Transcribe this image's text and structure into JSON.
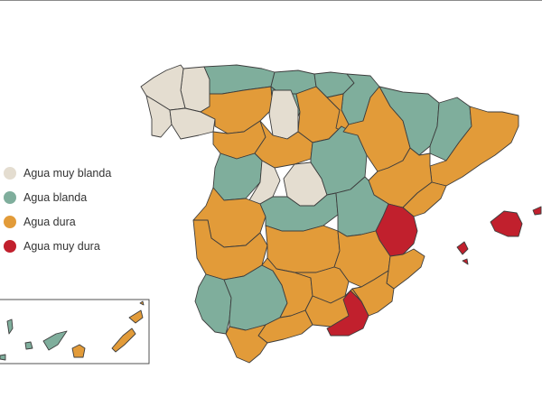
{
  "colors": {
    "muy_blanda": "#e4ddd0",
    "blanda": "#7fae9c",
    "dura": "#e29b39",
    "muy_dura": "#c1202d",
    "border": "#3d3d3d"
  },
  "legend": {
    "items": [
      {
        "label": "Agua muy blanda",
        "key": "muy_blanda"
      },
      {
        "label": "Agua blanda",
        "key": "blanda"
      },
      {
        "label": "Agua dura",
        "key": "dura"
      },
      {
        "label": "Agua muy dura",
        "key": "muy_dura"
      }
    ]
  },
  "map": {
    "regions": [
      {
        "id": "galicia-lugo",
        "category": "muy_blanda"
      },
      {
        "id": "galicia-coruna",
        "category": "muy_blanda"
      },
      {
        "id": "galicia-pontevedra",
        "category": "muy_blanda"
      },
      {
        "id": "galicia-ourense",
        "category": "muy_blanda"
      },
      {
        "id": "soria",
        "category": "muy_blanda"
      },
      {
        "id": "avila-segovia",
        "category": "muy_blanda"
      },
      {
        "id": "madrid",
        "category": "muy_blanda"
      },
      {
        "id": "asturias",
        "category": "blanda"
      },
      {
        "id": "cantabria",
        "category": "blanda"
      },
      {
        "id": "pais-vasco",
        "category": "blanda"
      },
      {
        "id": "navarra",
        "category": "blanda"
      },
      {
        "id": "huesca",
        "category": "blanda"
      },
      {
        "id": "lleida",
        "category": "blanda"
      },
      {
        "id": "palencia",
        "category": "blanda"
      },
      {
        "id": "salamanca",
        "category": "blanda"
      },
      {
        "id": "guadalajara",
        "category": "blanda"
      },
      {
        "id": "toledo",
        "category": "blanda"
      },
      {
        "id": "cuenca",
        "category": "blanda"
      },
      {
        "id": "huelva",
        "category": "blanda"
      },
      {
        "id": "sevilla",
        "category": "blanda"
      },
      {
        "id": "tenerife",
        "category": "blanda"
      },
      {
        "id": "leon",
        "category": "dura"
      },
      {
        "id": "zamora",
        "category": "dura"
      },
      {
        "id": "valladolid",
        "category": "dura"
      },
      {
        "id": "burgos",
        "category": "dura"
      },
      {
        "id": "larioja",
        "category": "dura"
      },
      {
        "id": "zaragoza",
        "category": "dura"
      },
      {
        "id": "teruel",
        "category": "dura"
      },
      {
        "id": "cataluna",
        "category": "dura"
      },
      {
        "id": "castellon",
        "category": "dura"
      },
      {
        "id": "caceres",
        "category": "dura"
      },
      {
        "id": "badajoz",
        "category": "dura"
      },
      {
        "id": "ciudad-real",
        "category": "dura"
      },
      {
        "id": "albacete",
        "category": "dura"
      },
      {
        "id": "alicante",
        "category": "dura"
      },
      {
        "id": "cordoba",
        "category": "dura"
      },
      {
        "id": "jaen",
        "category": "dura"
      },
      {
        "id": "granada",
        "category": "dura"
      },
      {
        "id": "malaga",
        "category": "dura"
      },
      {
        "id": "cadiz",
        "category": "dura"
      },
      {
        "id": "murcia",
        "category": "dura"
      },
      {
        "id": "gran-canaria",
        "category": "dura"
      },
      {
        "id": "fuerteventura",
        "category": "dura"
      },
      {
        "id": "lanzarote",
        "category": "dura"
      },
      {
        "id": "valencia",
        "category": "muy_dura"
      },
      {
        "id": "almeria",
        "category": "muy_dura"
      },
      {
        "id": "mallorca",
        "category": "muy_dura"
      },
      {
        "id": "ibiza",
        "category": "muy_dura"
      }
    ]
  }
}
